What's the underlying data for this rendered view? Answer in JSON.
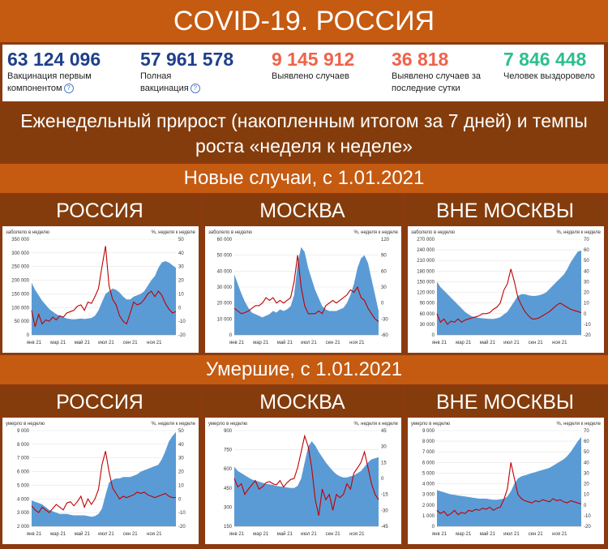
{
  "header": {
    "title": "COVID-19. РОССИЯ"
  },
  "stats": [
    {
      "value": "63 124 096",
      "label": "Вакцинация первым компонентом",
      "color": "#1F3F8C",
      "help": true
    },
    {
      "value": "57 961 578",
      "label": "Полная вакцинация",
      "color": "#1F3F8C",
      "help": true
    },
    {
      "value": "9 145 912",
      "label": "Выявлено случаев",
      "color": "#F0624A",
      "help": false
    },
    {
      "value": "36 818",
      "label": "Выявлено случаев за последние сутки",
      "color": "#F0624A",
      "help": false
    },
    {
      "value": "7 846 448",
      "label": "Человек выздоровело",
      "color": "#2DBE8E",
      "help": false
    }
  ],
  "subtitle": "Еженедельный прирост (накопленным итогом за 7 дней) и темпы роста «неделя к неделе»",
  "sections": [
    {
      "title": "Новые случаи, с 1.01.2021"
    },
    {
      "title": "Умершие, с 1.01.2021"
    }
  ],
  "regions": [
    "РОССИЯ",
    "МОСКВА",
    "ВНЕ МОСКВЫ"
  ],
  "colors": {
    "area": "#5B9BD5",
    "line": "#C00000",
    "title_band": "#C55A11",
    "dark_band": "#843C0C"
  },
  "chart_data": [
    {
      "type": "area",
      "section": "cases",
      "region": "РОССИЯ",
      "y1label": "заболело в неделю",
      "y2label": "%, неделя к неделе",
      "y1ticks": [
        "0",
        "50 000",
        "100 000",
        "150 000",
        "200 000",
        "250 000",
        "300 000",
        "350 000"
      ],
      "y2ticks": [
        "-20",
        "-10",
        "0",
        "10",
        "20",
        "30",
        "40",
        "50"
      ],
      "y1lim": [
        0,
        350000
      ],
      "y2lim": [
        -20,
        50
      ],
      "xticks": [
        "янв 21",
        "мар 21",
        "май 21",
        "июл 21",
        "сен 21",
        "ноя 21"
      ],
      "series": [
        {
          "name": "заболело в неделю",
          "axis": "y1",
          "values": [
            190000,
            165000,
            145000,
            125000,
            110000,
            95000,
            85000,
            76000,
            70000,
            65000,
            60000,
            58000,
            57000,
            58000,
            60000,
            58000,
            60000,
            62000,
            70000,
            90000,
            120000,
            150000,
            160000,
            170000,
            165000,
            155000,
            140000,
            130000,
            130000,
            140000,
            145000,
            150000,
            160000,
            180000,
            200000,
            215000,
            245000,
            265000,
            270000,
            265000,
            255000,
            245000
          ]
        },
        {
          "name": "%, неделя к неделе",
          "axis": "y2",
          "values": [
            -2,
            -14,
            -5,
            -12,
            -9,
            -10,
            -7,
            -9,
            -6,
            -7,
            -4,
            -3,
            -2,
            1,
            2,
            -2,
            4,
            3,
            8,
            14,
            30,
            45,
            16,
            6,
            2,
            -6,
            -10,
            -12,
            -4,
            4,
            2,
            3,
            6,
            10,
            12,
            8,
            12,
            9,
            3,
            -1,
            -4,
            -3
          ]
        }
      ]
    },
    {
      "type": "area",
      "section": "cases",
      "region": "МОСКВА",
      "y1label": "заболело в неделю",
      "y2label": "%, неделя к неделе",
      "y1ticks": [
        "0",
        "10 000",
        "20 000",
        "30 000",
        "40 000",
        "50 000",
        "60 000"
      ],
      "y2ticks": [
        "-60",
        "-30",
        "0",
        "30",
        "60",
        "90",
        "120"
      ],
      "y1lim": [
        0,
        60000
      ],
      "y2lim": [
        -60,
        120
      ],
      "xticks": [
        "янв 21",
        "мар 21",
        "май 21",
        "июл 21",
        "сен 21",
        "ноя 21"
      ],
      "series": [
        {
          "name": "заболело в неделю",
          "axis": "y1",
          "values": [
            38000,
            32000,
            26000,
            21000,
            17000,
            14000,
            13000,
            12000,
            11000,
            12000,
            13000,
            15000,
            14000,
            16000,
            15000,
            16000,
            18000,
            25000,
            45000,
            55000,
            52000,
            42000,
            35000,
            28000,
            23000,
            18000,
            16000,
            15000,
            15000,
            15000,
            16000,
            17000,
            20000,
            25000,
            32000,
            42000,
            48000,
            50000,
            45000,
            35000,
            25000,
            15000
          ]
        },
        {
          "name": "%, неделя к неделе",
          "axis": "y2",
          "values": [
            -10,
            -15,
            -20,
            -18,
            -15,
            -10,
            -5,
            -5,
            0,
            10,
            5,
            10,
            0,
            5,
            0,
            5,
            10,
            40,
            90,
            30,
            -5,
            -20,
            -20,
            -20,
            -15,
            -20,
            -5,
            0,
            5,
            0,
            5,
            10,
            15,
            25,
            20,
            30,
            10,
            5,
            -10,
            -20,
            -30,
            -35
          ]
        }
      ]
    },
    {
      "type": "area",
      "section": "cases",
      "region": "ВНЕ МОСКВЫ",
      "y1label": "заболело в неделю",
      "y2label": "%, неделя к неделе",
      "y1ticks": [
        "0",
        "30 000",
        "60 000",
        "90 000",
        "120 000",
        "150 000",
        "180 000",
        "210 000",
        "240 000",
        "270 000"
      ],
      "y2ticks": [
        "-20",
        "-10",
        "0",
        "10",
        "20",
        "30",
        "40",
        "50",
        "60",
        "70"
      ],
      "y1lim": [
        0,
        270000
      ],
      "y2lim": [
        -20,
        70
      ],
      "xticks": [
        "янв 21",
        "мар 21",
        "май 21",
        "июл 21",
        "сен 21",
        "ноя 21"
      ],
      "series": [
        {
          "name": "заболело в неделю",
          "axis": "y1",
          "values": [
            150000,
            135000,
            125000,
            115000,
            105000,
            95000,
            85000,
            75000,
            65000,
            58000,
            52000,
            50000,
            48000,
            47000,
            46000,
            45000,
            45000,
            47000,
            50000,
            58000,
            65000,
            80000,
            95000,
            110000,
            115000,
            115000,
            112000,
            110000,
            110000,
            112000,
            115000,
            120000,
            130000,
            140000,
            150000,
            160000,
            170000,
            185000,
            205000,
            220000,
            235000,
            238000
          ]
        },
        {
          "name": "%, неделя к неделе",
          "axis": "y2",
          "values": [
            0,
            -8,
            -5,
            -10,
            -7,
            -8,
            -5,
            -8,
            -6,
            -5,
            -4,
            -3,
            -2,
            0,
            0,
            1,
            4,
            6,
            10,
            22,
            28,
            42,
            30,
            15,
            8,
            2,
            -2,
            -5,
            -5,
            -4,
            -2,
            0,
            2,
            5,
            8,
            10,
            8,
            6,
            4,
            3,
            2,
            1
          ]
        }
      ]
    },
    {
      "type": "area",
      "section": "deaths",
      "region": "РОССИЯ",
      "y1label": "умерло в неделю",
      "y2label": "%, неделя к неделе",
      "y1ticks": [
        "2 000",
        "3 000",
        "4 000",
        "5 000",
        "6 000",
        "7 000",
        "8 000",
        "9 000"
      ],
      "y2ticks": [
        "-20",
        "-10",
        "0",
        "10",
        "20",
        "30",
        "40",
        "50"
      ],
      "y1lim": [
        2000,
        9000
      ],
      "y2lim": [
        -20,
        50
      ],
      "xticks": [
        "янв 21",
        "мар 21",
        "май 21",
        "июл 21",
        "сен 21",
        "ноя 21"
      ],
      "series": [
        {
          "name": "умерло в неделю",
          "axis": "y1",
          "values": [
            3900,
            3800,
            3700,
            3600,
            3400,
            3200,
            3100,
            3000,
            2900,
            2900,
            2900,
            2850,
            2800,
            2800,
            2800,
            2800,
            2750,
            2700,
            2750,
            2900,
            3300,
            4300,
            5200,
            5400,
            5500,
            5500,
            5600,
            5600,
            5600,
            5700,
            5800,
            6000,
            6100,
            6200,
            6300,
            6400,
            6500,
            6900,
            7500,
            8200,
            8600,
            8900
          ]
        },
        {
          "name": "%, неделя к неделе",
          "axis": "y2",
          "values": [
            -5,
            -8,
            -10,
            -6,
            -8,
            -10,
            -7,
            -4,
            -6,
            -8,
            -3,
            -2,
            -5,
            -2,
            2,
            -6,
            0,
            -4,
            0,
            7,
            25,
            35,
            20,
            8,
            4,
            0,
            2,
            1,
            2,
            3,
            5,
            4,
            5,
            3,
            2,
            1,
            2,
            3,
            4,
            2,
            1,
            1
          ]
        }
      ]
    },
    {
      "type": "area",
      "section": "deaths",
      "region": "МОСКВА",
      "y1label": "умерло в неделю",
      "y2label": "%, неделя к неделе",
      "y1ticks": [
        "150",
        "300",
        "450",
        "600",
        "750",
        "900"
      ],
      "y2ticks": [
        "-45",
        "-30",
        "-15",
        "0",
        "15",
        "30",
        "45"
      ],
      "y1lim": [
        0,
        900
      ],
      "y2lim": [
        -45,
        45
      ],
      "xticks": [
        "янв 21",
        "мар 21",
        "май 21",
        "июл 21",
        "сен 21",
        "ноя 21"
      ],
      "series": [
        {
          "name": "умерло в неделю",
          "axis": "y1",
          "values": [
            560,
            520,
            500,
            480,
            460,
            440,
            430,
            420,
            410,
            400,
            395,
            390,
            380,
            375,
            370,
            365,
            360,
            360,
            380,
            450,
            600,
            750,
            800,
            760,
            700,
            650,
            600,
            560,
            520,
            490,
            470,
            460,
            460,
            470,
            480,
            500,
            520,
            560,
            600,
            630,
            640,
            650
          ]
        },
        {
          "name": "%, неделя к неделе",
          "axis": "y2",
          "values": [
            0,
            -8,
            -5,
            -15,
            -10,
            -6,
            -2,
            -10,
            -8,
            -4,
            -3,
            -5,
            -6,
            -2,
            -8,
            -4,
            -1,
            0,
            10,
            25,
            40,
            30,
            10,
            -20,
            -35,
            -10,
            -20,
            -15,
            -30,
            -15,
            -18,
            -15,
            -5,
            -10,
            5,
            10,
            15,
            25,
            10,
            -5,
            -15,
            -20
          ]
        }
      ]
    },
    {
      "type": "area",
      "section": "deaths",
      "region": "ВНЕ МОСКВЫ",
      "y1label": "умерло в неделю",
      "y2label": "%, неделя к неделе",
      "y1ticks": [
        "0",
        "1 000",
        "2 000",
        "3 000",
        "4 000",
        "5 000",
        "6 000",
        "7 000",
        "8 000",
        "9 000"
      ],
      "y2ticks": [
        "-20",
        "-10",
        "0",
        "10",
        "20",
        "30",
        "40",
        "50",
        "60",
        "70"
      ],
      "y1lim": [
        0,
        9000
      ],
      "y2lim": [
        -20,
        70
      ],
      "xticks": [
        "янв 21",
        "мар 21",
        "май 21",
        "июл 21",
        "сен 21",
        "ноя 21"
      ],
      "series": [
        {
          "name": "умерло в неделю",
          "axis": "y1",
          "values": [
            3400,
            3300,
            3200,
            3100,
            3000,
            2950,
            2900,
            2850,
            2800,
            2750,
            2700,
            2650,
            2600,
            2600,
            2600,
            2550,
            2500,
            2500,
            2550,
            2600,
            2800,
            3300,
            4000,
            4500,
            4700,
            4800,
            4900,
            5000,
            5100,
            5200,
            5300,
            5400,
            5500,
            5700,
            5900,
            6100,
            6300,
            6600,
            7000,
            7500,
            8000,
            8400
          ]
        },
        {
          "name": "%, неделя к неделе",
          "axis": "y2",
          "values": [
            -5,
            -8,
            -6,
            -10,
            -8,
            -5,
            -9,
            -7,
            -8,
            -5,
            -6,
            -4,
            -5,
            -3,
            -4,
            -2,
            -5,
            -3,
            -2,
            5,
            15,
            40,
            25,
            10,
            6,
            4,
            3,
            2,
            4,
            3,
            5,
            4,
            3,
            6,
            4,
            5,
            3,
            2,
            4,
            3,
            2,
            1
          ]
        }
      ]
    }
  ]
}
